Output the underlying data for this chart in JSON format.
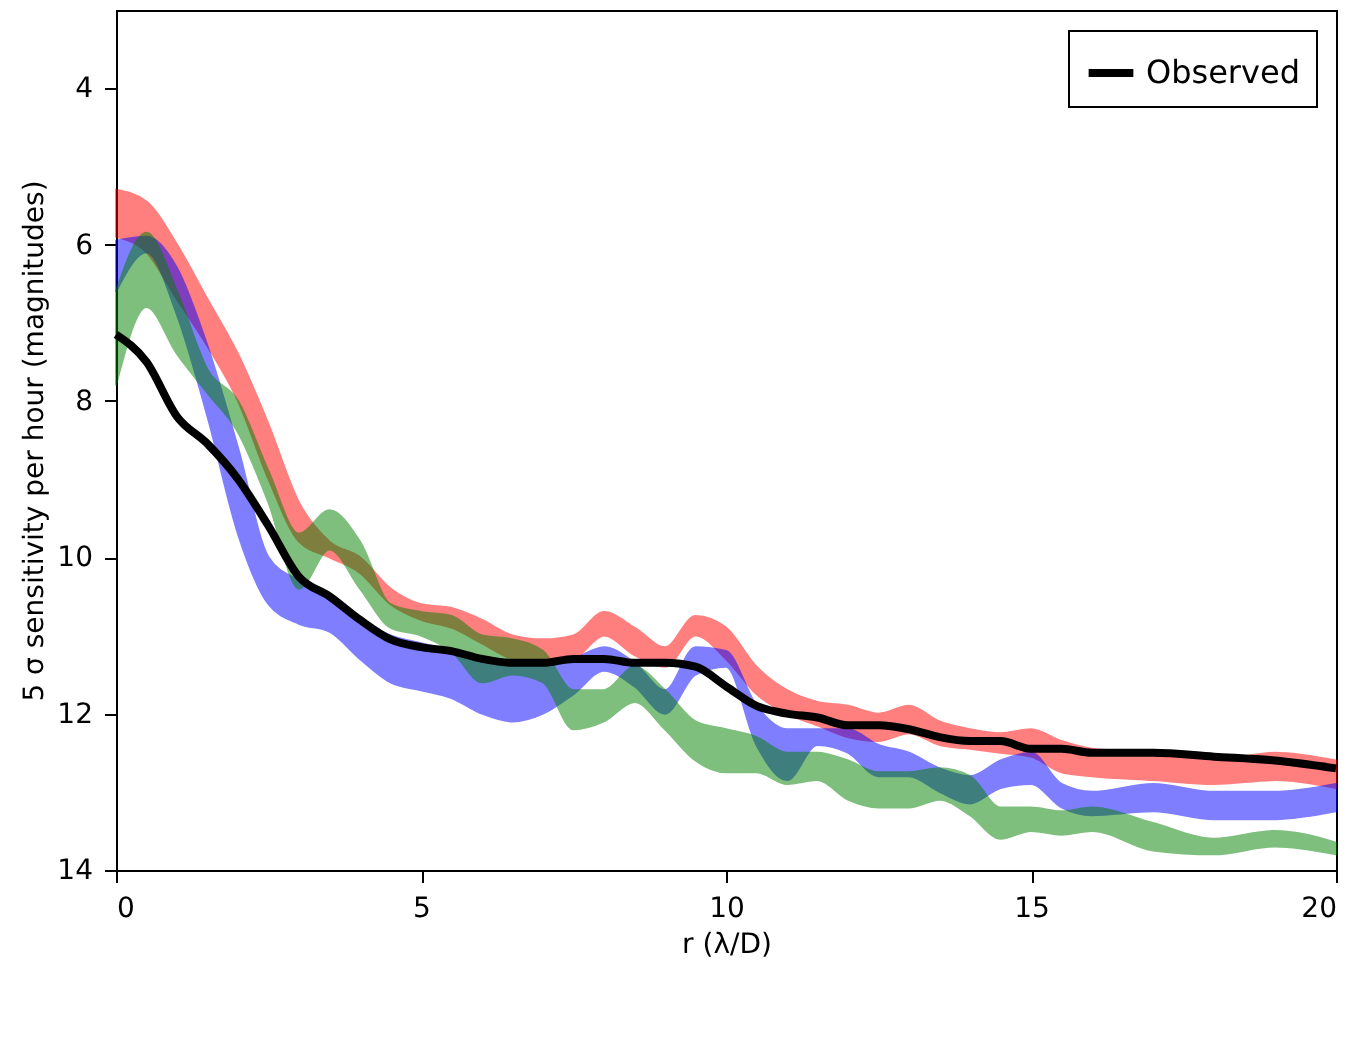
{
  "chart_data": {
    "type": "line",
    "xlabel": "r (λ/D)",
    "ylabel": "5 σ sensitivity per hour (magnitudes)",
    "x": [
      0,
      0.5,
      1,
      1.5,
      2,
      2.5,
      3,
      3.5,
      4,
      4.5,
      5,
      5.5,
      6,
      6.5,
      7,
      7.5,
      8,
      8.5,
      9,
      9.5,
      10,
      10.5,
      11,
      11.5,
      12,
      12.5,
      13,
      13.5,
      14,
      14.5,
      15,
      15.5,
      16,
      17,
      18,
      19,
      20
    ],
    "xlim": [
      0,
      20
    ],
    "xticks": [
      0,
      5,
      10,
      15,
      20
    ],
    "ylim": [
      14,
      3
    ],
    "yticks": [
      4,
      6,
      8,
      10,
      12,
      14
    ],
    "grid": false,
    "legend": "top right",
    "series": [
      {
        "type": "area",
        "color": "#ff0000",
        "values": [
          null,
          null,
          null,
          null,
          null,
          null,
          null,
          null,
          null,
          null,
          null,
          null,
          null,
          null,
          null,
          null,
          null,
          null,
          null,
          null,
          null,
          null,
          null,
          null,
          null,
          null,
          null,
          null,
          null,
          null,
          null,
          null,
          null,
          null,
          null,
          null,
          null
        ],
        "lower": [
          5.3,
          5.45,
          6.0,
          6.7,
          7.4,
          8.3,
          9.3,
          9.8,
          10.0,
          10.4,
          10.6,
          10.65,
          10.8,
          11.0,
          11.05,
          11.0,
          10.7,
          10.9,
          11.15,
          10.75,
          10.9,
          11.4,
          11.7,
          11.85,
          11.9,
          12.0,
          11.9,
          12.1,
          12.2,
          12.25,
          12.2,
          12.35,
          12.45,
          12.5,
          12.6,
          12.5,
          12.6
        ],
        "upper": [
          5.9,
          6.1,
          6.7,
          7.3,
          8.0,
          9.0,
          9.8,
          10.0,
          10.2,
          10.6,
          10.8,
          10.9,
          11.1,
          11.3,
          11.35,
          11.3,
          11.0,
          11.25,
          11.4,
          11.0,
          11.3,
          11.75,
          12.0,
          12.15,
          12.3,
          12.35,
          12.25,
          12.4,
          12.45,
          12.5,
          12.55,
          12.75,
          12.8,
          12.85,
          12.9,
          12.85,
          12.95
        ]
      },
      {
        "type": "area",
        "color": "#0000ff",
        "values": [
          null,
          null,
          null,
          null,
          null,
          null,
          null,
          null,
          null,
          null,
          null,
          null,
          null,
          null,
          null,
          null,
          null,
          null,
          null,
          null,
          null,
          null,
          null,
          null,
          null,
          null,
          null,
          null,
          null,
          null,
          null,
          null,
          null,
          null,
          null,
          null,
          null
        ],
        "lower": [
          5.95,
          5.9,
          6.3,
          7.3,
          8.6,
          10.0,
          10.3,
          10.5,
          10.8,
          11.0,
          11.1,
          11.2,
          11.35,
          11.4,
          11.4,
          11.3,
          11.15,
          11.35,
          11.7,
          11.15,
          11.2,
          11.9,
          12.2,
          12.2,
          12.2,
          12.4,
          12.5,
          12.7,
          12.8,
          12.6,
          12.5,
          12.9,
          13.0,
          12.9,
          13.0,
          13.0,
          12.9
        ],
        "upper": [
          6.6,
          6.1,
          6.9,
          8.2,
          9.7,
          10.6,
          10.85,
          10.95,
          11.3,
          11.6,
          11.7,
          11.8,
          12.0,
          12.1,
          12.0,
          11.75,
          11.45,
          11.65,
          12.0,
          11.5,
          11.4,
          12.4,
          12.85,
          12.4,
          12.5,
          12.8,
          12.8,
          13.0,
          13.15,
          12.95,
          12.9,
          13.2,
          13.3,
          13.25,
          13.35,
          13.35,
          13.25
        ]
      },
      {
        "type": "area",
        "color": "#008000",
        "values": [
          null,
          null,
          null,
          null,
          null,
          null,
          null,
          null,
          null,
          null,
          null,
          null,
          null,
          null,
          null,
          null,
          null,
          null,
          null,
          null,
          null,
          null,
          null,
          null,
          null,
          null,
          null,
          null,
          null,
          null,
          null,
          null,
          null,
          null,
          null,
          null,
          null
        ],
        "lower": [
          6.6,
          5.85,
          6.6,
          7.6,
          8.0,
          8.9,
          9.7,
          9.4,
          9.8,
          10.6,
          10.7,
          10.75,
          11.0,
          11.05,
          11.2,
          11.7,
          11.7,
          11.4,
          11.7,
          12.1,
          12.2,
          12.3,
          12.5,
          12.5,
          12.6,
          12.75,
          12.75,
          12.7,
          12.8,
          13.2,
          13.2,
          13.25,
          13.2,
          13.4,
          13.6,
          13.5,
          13.65
        ],
        "upper": [
          7.8,
          6.8,
          7.4,
          7.9,
          8.4,
          9.3,
          10.4,
          9.9,
          10.4,
          10.9,
          11.0,
          11.2,
          11.6,
          11.5,
          11.6,
          12.2,
          12.1,
          11.85,
          12.2,
          12.6,
          12.75,
          12.75,
          12.9,
          12.85,
          13.1,
          13.2,
          13.2,
          13.1,
          13.3,
          13.6,
          13.5,
          13.55,
          13.5,
          13.75,
          13.8,
          13.7,
          13.8
        ]
      },
      {
        "type": "line",
        "name": "Observed",
        "color": "#000000",
        "values": [
          7.15,
          7.5,
          8.2,
          8.55,
          9.0,
          9.6,
          10.25,
          10.5,
          10.8,
          11.05,
          11.15,
          11.2,
          11.3,
          11.35,
          11.35,
          11.3,
          11.3,
          11.35,
          11.35,
          11.4,
          11.65,
          11.9,
          12.0,
          12.05,
          12.15,
          12.15,
          12.2,
          12.3,
          12.35,
          12.35,
          12.45,
          12.45,
          12.5,
          12.5,
          12.55,
          12.6,
          12.7
        ]
      }
    ]
  }
}
